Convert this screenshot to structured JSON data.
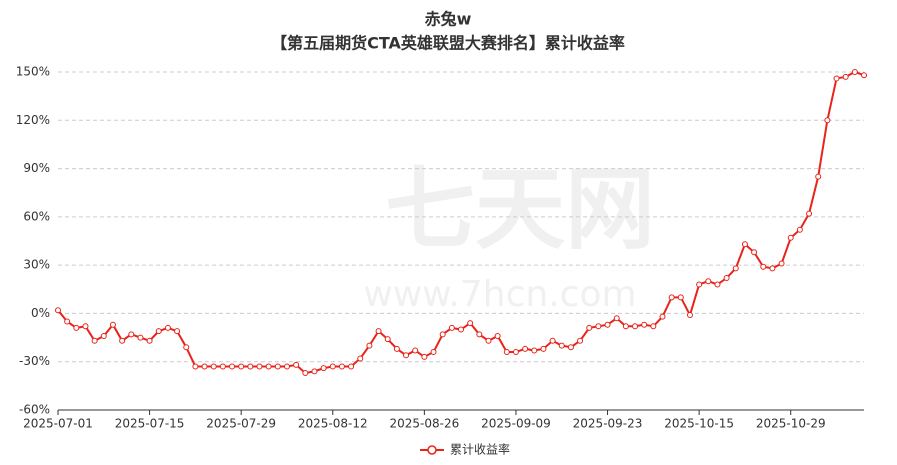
{
  "chart_data": {
    "type": "line",
    "title": "赤兔w",
    "subtitle": "【第五届期货CTA英雄联盟大赛排名】累计收益率",
    "watermark": [
      "七天网",
      "www.7hcn.com"
    ],
    "categories": [
      "2025-07-01",
      null,
      null,
      null,
      null,
      null,
      null,
      null,
      null,
      null,
      "2025-07-15",
      null,
      null,
      null,
      null,
      null,
      null,
      null,
      null,
      null,
      "2025-07-29",
      null,
      null,
      null,
      null,
      null,
      null,
      null,
      null,
      null,
      "2025-08-12",
      null,
      null,
      null,
      null,
      null,
      null,
      null,
      null,
      null,
      "2025-08-26",
      null,
      null,
      null,
      null,
      null,
      null,
      null,
      null,
      null,
      "2025-09-09",
      null,
      null,
      null,
      null,
      null,
      null,
      null,
      null,
      null,
      "2025-09-23",
      null,
      null,
      null,
      null,
      null,
      null,
      null,
      null,
      null,
      "2025-10-15",
      null,
      null,
      null,
      null,
      null,
      null,
      null,
      null,
      null,
      "2025-10-29",
      null,
      null,
      null,
      null,
      null,
      null,
      null,
      null
    ],
    "series": [
      {
        "name": "累计收益率",
        "color": "#e8231a",
        "values": [
          2,
          -5,
          -9,
          -8,
          -17,
          -14,
          -7,
          -17,
          -13,
          -15,
          -17,
          -11,
          -9,
          -11,
          -21,
          -33,
          -33,
          -33,
          -33,
          -33,
          -33,
          -33,
          -33,
          -33,
          -33,
          -33,
          -32,
          -37,
          -36,
          -34,
          -33,
          -33,
          -33,
          -28,
          -20,
          -11,
          -16,
          -22,
          -26,
          -23,
          -27,
          -24,
          -13,
          -9,
          -10,
          -6,
          -13,
          -17,
          -14,
          -24,
          -24,
          -22,
          -23,
          -22,
          -17,
          -20,
          -21,
          -17,
          -9,
          -8,
          -7,
          -3,
          -8,
          -8,
          -7,
          -8,
          -2,
          10,
          10,
          -1,
          18,
          20,
          18,
          22,
          28,
          43,
          38,
          29,
          28,
          31,
          47,
          52,
          62,
          85,
          120,
          146,
          147,
          150,
          148
        ]
      }
    ],
    "ylim": [
      -60,
      150
    ],
    "yticks": [
      {
        "value": -60,
        "label": "-60%"
      },
      {
        "value": -30,
        "label": "-30%"
      },
      {
        "value": 0,
        "label": "0%"
      },
      {
        "value": 30,
        "label": "30%"
      },
      {
        "value": 60,
        "label": "60%"
      },
      {
        "value": 90,
        "label": "90%"
      },
      {
        "value": 120,
        "label": "120%"
      },
      {
        "value": 150,
        "label": "150%"
      }
    ],
    "grid": true,
    "legend": "bottom"
  }
}
